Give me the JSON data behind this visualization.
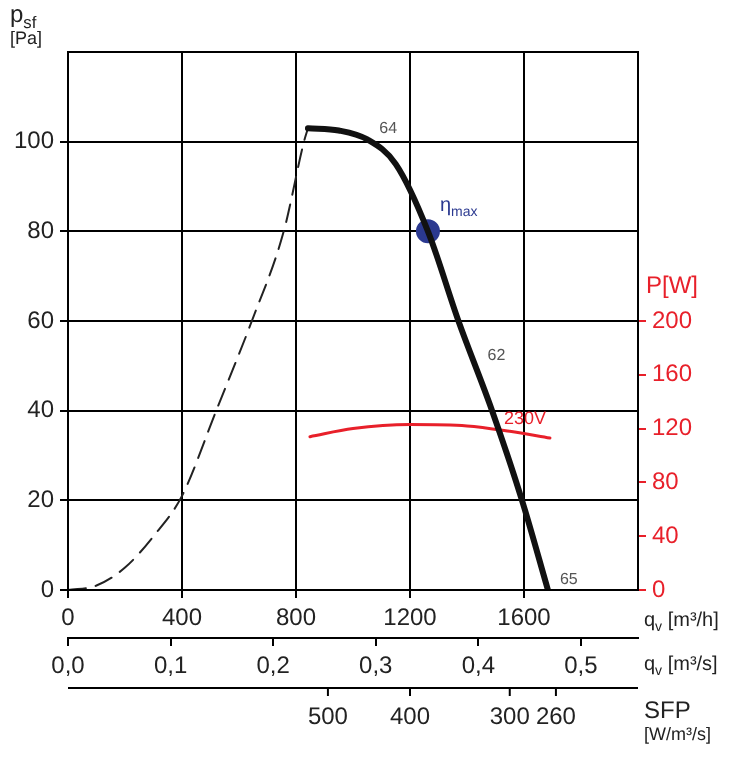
{
  "chart_data": {
    "type": "line",
    "xlabel": "q$_{v}$ [m³/h]",
    "ylabel": "p$_{sf}$ [Pa]",
    "y2label": "P[W]",
    "x2label": "q$_{v}$ [m³/s]",
    "xlim": [
      0,
      2000
    ],
    "xticks": [
      0,
      400,
      800,
      1200,
      1600
    ],
    "ylim": [
      0,
      120
    ],
    "yticks": [
      0,
      20,
      40,
      60,
      80,
      100
    ],
    "y2lim": [
      0,
      400
    ],
    "y2ticks": [
      0,
      40,
      80,
      120,
      160,
      200
    ],
    "x2lim": [
      0,
      0.5556
    ],
    "x2ticks": [
      {
        "value": 0,
        "label": "0,0"
      },
      {
        "value": 0.1,
        "label": "0,1"
      },
      {
        "value": 0.2,
        "label": "0,2"
      },
      {
        "value": 0.3,
        "label": "0,3"
      },
      {
        "value": 0.4,
        "label": "0,4"
      },
      {
        "value": 0.5,
        "label": "0,5"
      }
    ],
    "grid": true,
    "legend": false,
    "marker": "none",
    "series": [
      {
        "color": "#111111",
        "line_style": "solid",
        "x": [
          842,
          950,
          1050,
          1150,
          1263,
          1370,
          1488,
          1593,
          1684
        ],
        "values": [
          103,
          102.5,
          100.5,
          95,
          80,
          60,
          40,
          20,
          0
        ]
      },
      {
        "color": "#222222",
        "line_style": "dashed",
        "x": [
          0,
          100,
          200,
          300,
          400,
          520,
          645,
          757,
          828,
          842
        ],
        "values": [
          0,
          1,
          5,
          12,
          21,
          40,
          60,
          80,
          100,
          103
        ]
      },
      {
        "name": "230V",
        "axis": "y2",
        "color": "#e8202a",
        "line_style": "solid",
        "x": [
          849,
          1000,
          1200,
          1400,
          1550,
          1691
        ],
        "values": [
          114,
          120,
          123,
          122,
          118,
          113
        ]
      },
      {
        "type": "scatter",
        "name": "η$_{max}$",
        "color": "#2b3990",
        "marker": "circle",
        "x": [
          1263
        ],
        "values": [
          80
        ]
      }
    ],
    "annotations": [
      {
        "text": "64",
        "x": 1050,
        "y": 100.5
      },
      {
        "text": "62",
        "x": 1430,
        "y": 50
      },
      {
        "text": "65",
        "x": 1684,
        "y": 0
      },
      "500",
      "400",
      "300",
      "260",
      "SFP [W/m³/s]"
    ]
  }
}
